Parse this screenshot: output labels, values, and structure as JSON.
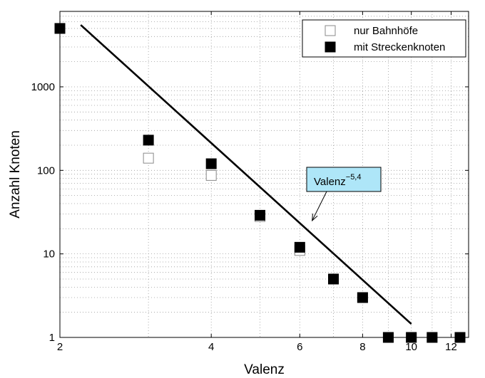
{
  "chart_data": {
    "type": "scatter",
    "xlabel": "Valenz",
    "ylabel": "Anzahl Knoten",
    "x_scale": "log",
    "y_scale": "log",
    "xlim": [
      2,
      13
    ],
    "ylim": [
      1,
      8000
    ],
    "x_ticks": [
      2,
      4,
      6,
      8,
      10,
      12
    ],
    "x_tick_labels": [
      "2",
      "4",
      "6",
      "8",
      "10",
      "12"
    ],
    "y_ticks": [
      1,
      10,
      100,
      1000
    ],
    "y_tick_labels": [
      "1",
      "10",
      "100",
      "1000"
    ],
    "grid": true,
    "legend_position": "top-right",
    "series": [
      {
        "name": "nur Bahnhöfe",
        "marker": "open-square",
        "color": "#000000",
        "x": [
          2,
          3,
          4,
          5,
          6,
          7,
          8,
          9,
          10,
          11,
          12.5
        ],
        "y": [
          5000,
          140,
          87,
          28,
          11,
          5,
          3,
          1,
          1,
          1,
          1
        ]
      },
      {
        "name": "mit Streckenknoten",
        "marker": "filled-square",
        "color": "#000000",
        "x": [
          2,
          3,
          4,
          5,
          6,
          7,
          8,
          9,
          10,
          11,
          12.5
        ],
        "y": [
          5000,
          230,
          120,
          29,
          12,
          5,
          3,
          1,
          1,
          1,
          1
        ]
      }
    ],
    "fit_line": {
      "x": [
        2.2,
        10
      ],
      "y": [
        5500,
        1.45
      ],
      "color": "#000000"
    },
    "annotation": {
      "text_base": "Valenz",
      "text_exponent": "−5,4",
      "box_color": "#aee6f8",
      "arrow_target": {
        "x": 6.35,
        "y": 25
      }
    }
  }
}
